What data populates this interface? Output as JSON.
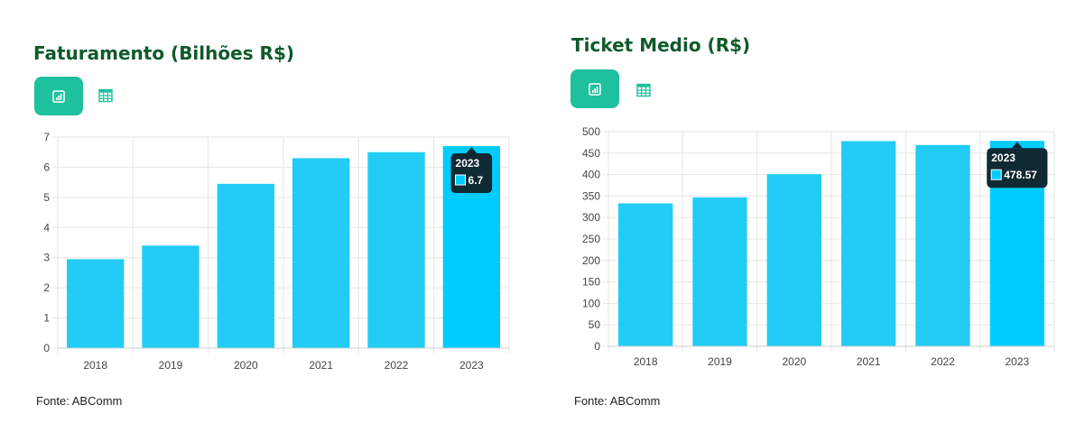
{
  "colors": {
    "title": "#0f5a2b",
    "button_bg": "#1fc09e",
    "bar": "#22ccf4",
    "bar_active": "#00ccff",
    "grid": "#e6e6e6",
    "tooltip_bg": "#102a33"
  },
  "icons": {
    "chart_button": "bar-chart-icon",
    "table_button": "table-grid-icon"
  },
  "chart_data": [
    {
      "type": "bar",
      "title": "Faturamento (Bilhões R$)",
      "categories": [
        "2018",
        "2019",
        "2020",
        "2021",
        "2022",
        "2023"
      ],
      "values": [
        2.95,
        3.4,
        5.45,
        6.3,
        6.5,
        6.7
      ],
      "ylim": [
        0,
        7
      ],
      "yticks": [
        0,
        1,
        2,
        3,
        4,
        5,
        6,
        7
      ],
      "grid": true,
      "highlighted_index": 5,
      "tooltip": {
        "title": "2023",
        "value": "6.7"
      },
      "source": "Fonte: ABComm"
    },
    {
      "type": "bar",
      "title": "Ticket Medio (R$)",
      "categories": [
        "2018",
        "2019",
        "2020",
        "2021",
        "2022",
        "2023"
      ],
      "values": [
        333,
        347,
        401,
        478,
        469,
        478.57
      ],
      "ylim": [
        0,
        500
      ],
      "yticks": [
        0,
        50,
        100,
        150,
        200,
        250,
        300,
        350,
        400,
        450,
        500
      ],
      "grid": true,
      "highlighted_index": 5,
      "tooltip": {
        "title": "2023",
        "value": "478.57"
      },
      "source": "Fonte: ABComm"
    }
  ]
}
